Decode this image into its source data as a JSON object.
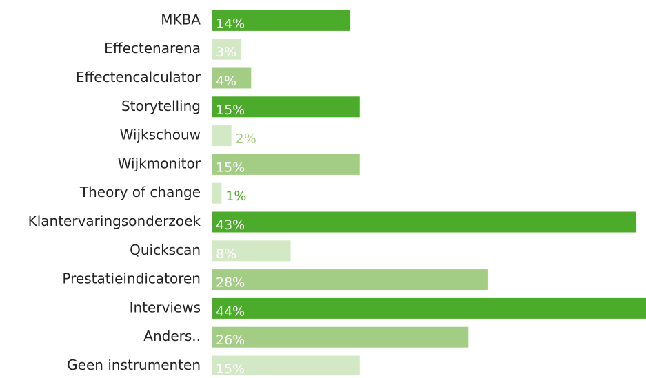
{
  "chart_data": {
    "type": "bar",
    "orientation": "horizontal",
    "categories": [
      "MKBA",
      "Effectenarena",
      "Effectencalculator",
      "Storytelling",
      "Wijkschouw",
      "Wijkmonitor",
      "Theory of change",
      "Klantervaringsonderzoek",
      "Quickscan",
      "Prestatieindicatoren",
      "Interviews",
      "Anders..",
      "Geen instrumenten"
    ],
    "values": [
      14,
      3,
      4,
      15,
      2,
      15,
      1,
      43,
      8,
      28,
      44,
      26,
      15
    ],
    "value_labels": [
      "14%",
      "3%",
      "4%",
      "15%",
      "2%",
      "15%",
      "1%",
      "43%",
      "8%",
      "28%",
      "44%",
      "26%",
      "15%"
    ],
    "colors": [
      "#4cab2a",
      "#d3e8c5",
      "#a3cc84",
      "#4cab2a",
      "#d3e8c5",
      "#a3cc84",
      "#d3e8c5",
      "#4cab2a",
      "#d3e8c5",
      "#a3cc84",
      "#4cab2a",
      "#a3cc84",
      "#d3e8c5"
    ],
    "label_colors": [
      "#ffffff",
      "#ffffff",
      "#ffffff",
      "#ffffff",
      "#a3cc84",
      "#ffffff",
      "#4cab2a",
      "#ffffff",
      "#ffffff",
      "#ffffff",
      "#ffffff",
      "#ffffff",
      "#ffffff"
    ]
  }
}
